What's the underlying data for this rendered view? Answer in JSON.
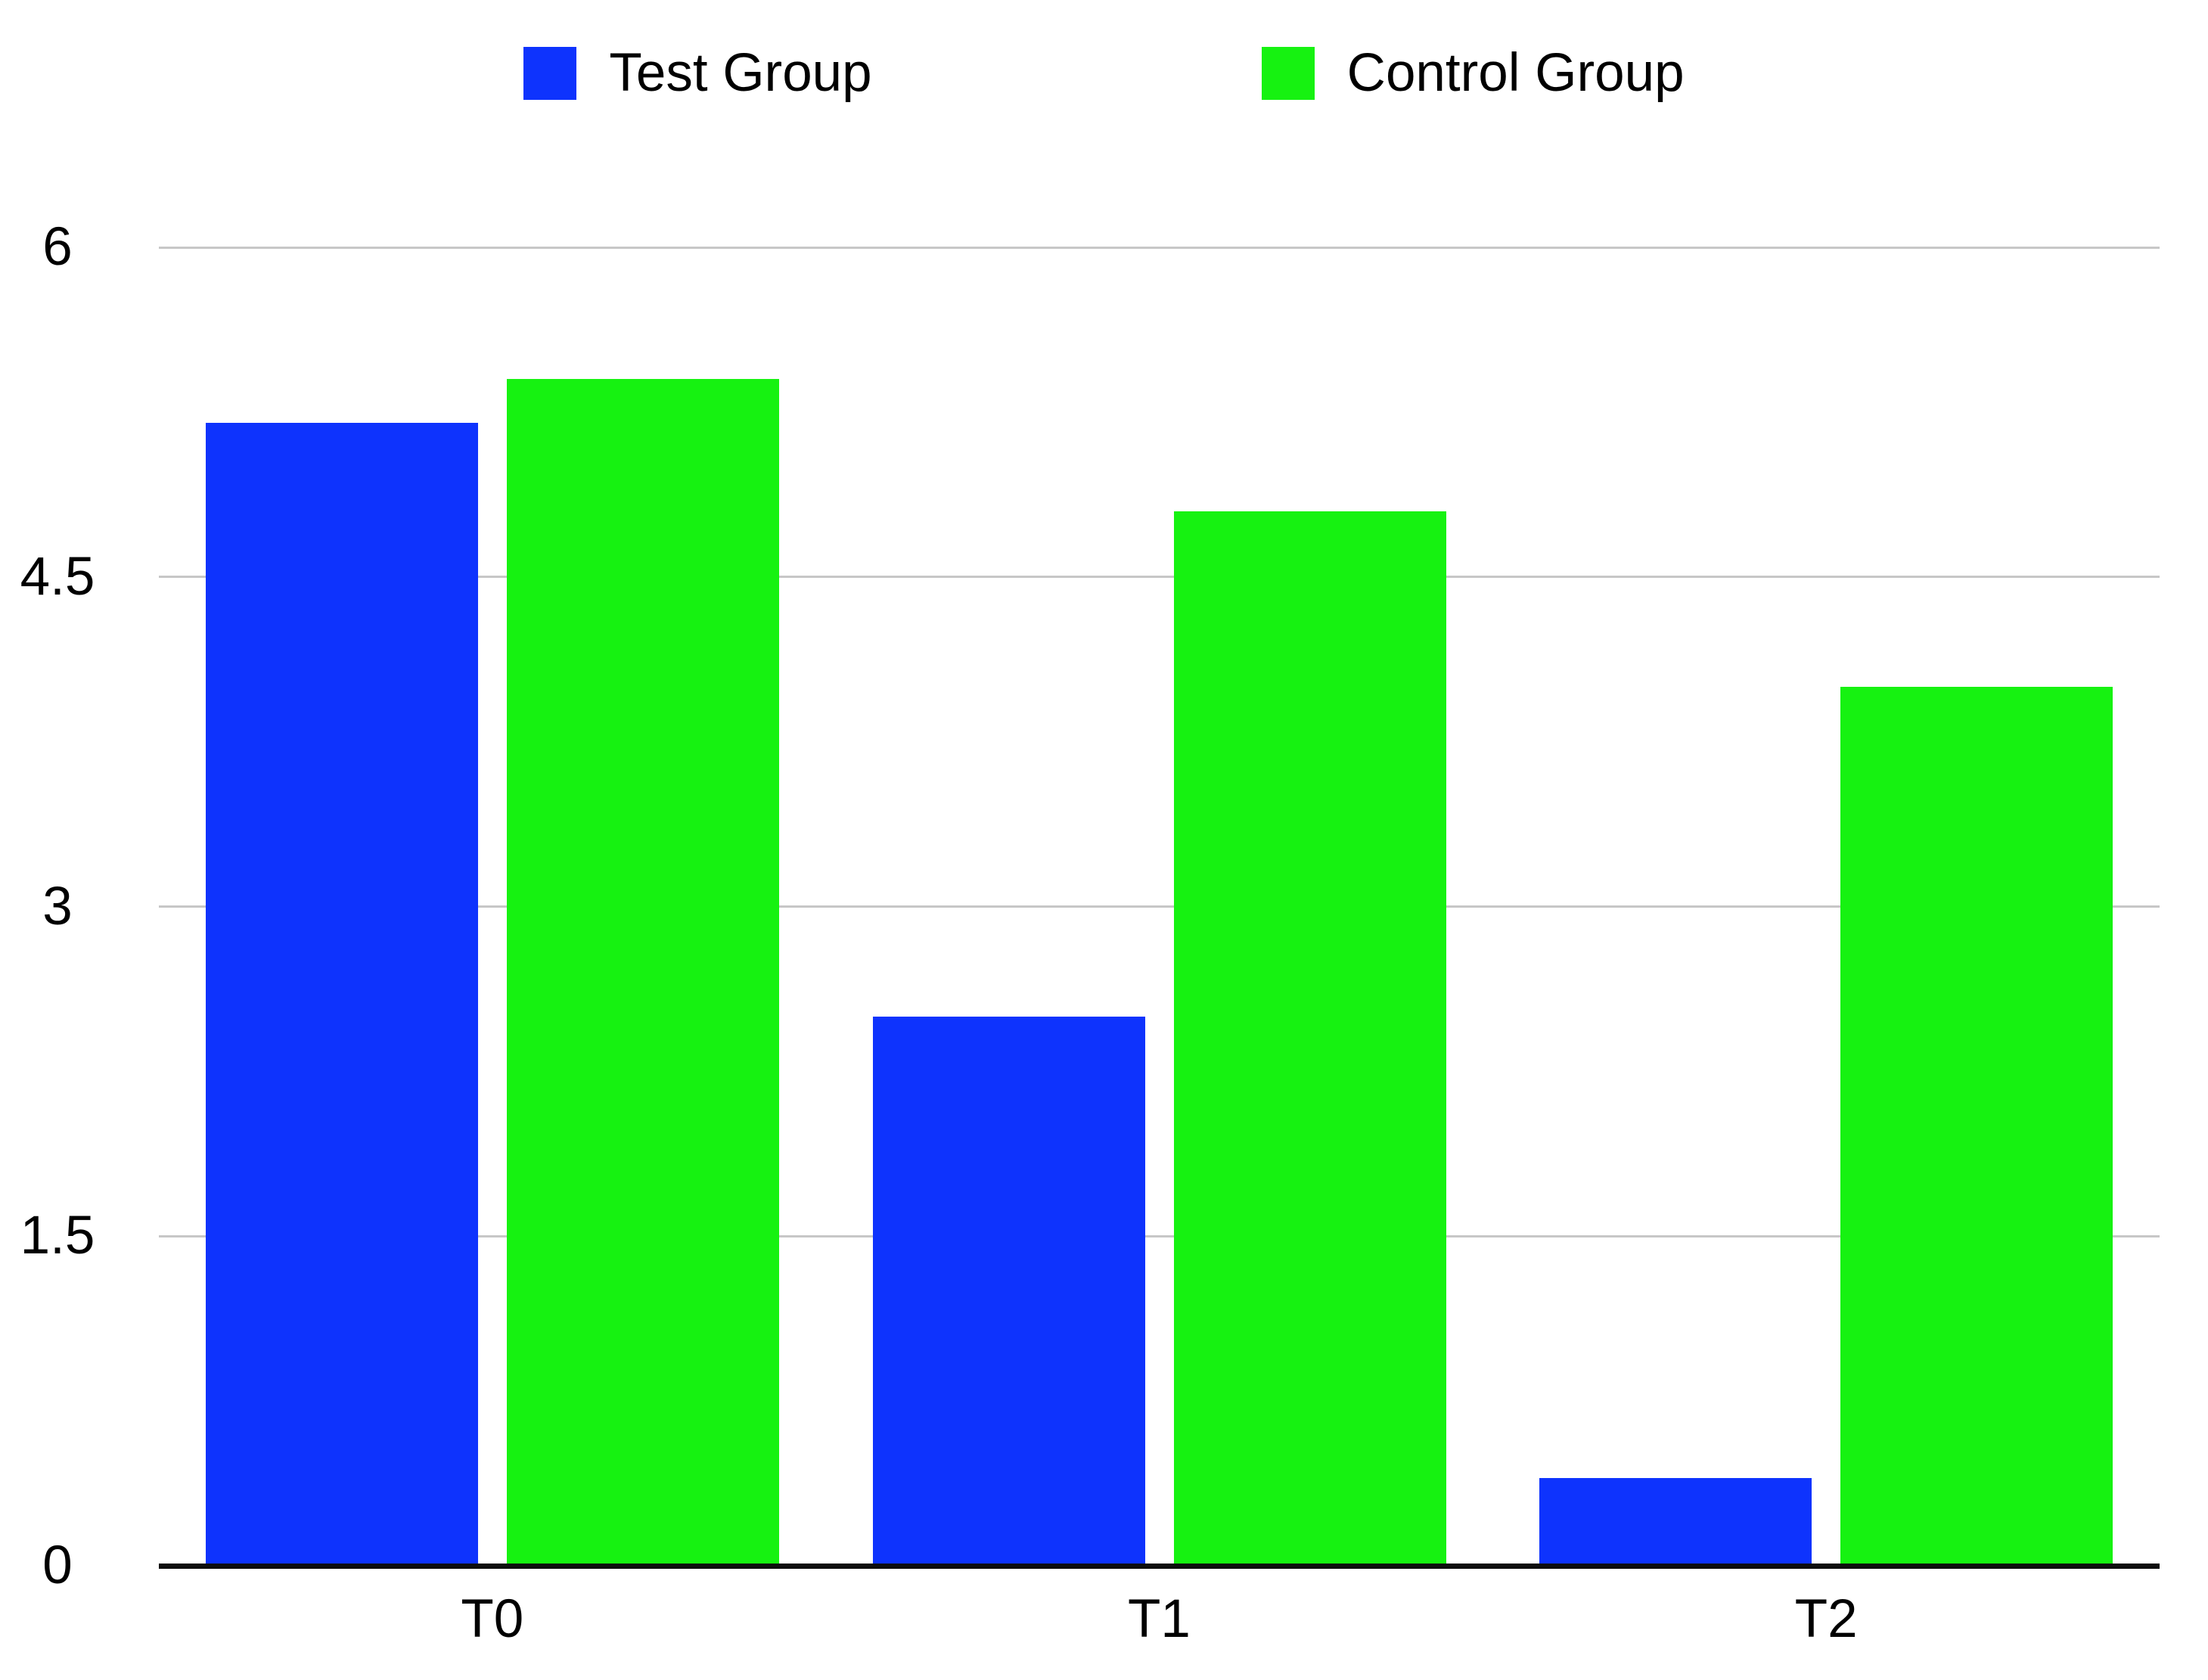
{
  "chart_data": {
    "type": "bar",
    "title": "",
    "xlabel": "",
    "ylabel": "",
    "categories": [
      "T0",
      "T1",
      "T2"
    ],
    "series": [
      {
        "name": "Test Group",
        "color": "#0e33fd",
        "values": [
          5.2,
          2.5,
          0.4
        ]
      },
      {
        "name": "Control Group",
        "color": "#16f211",
        "values": [
          5.4,
          4.8,
          4.0
        ]
      }
    ],
    "ylim": [
      0,
      6
    ],
    "yticks": [
      0,
      1.5,
      3,
      4.5,
      6
    ],
    "ytick_labels": [
      "0",
      "1.5",
      "3",
      "4.5",
      "6"
    ],
    "grid": true,
    "grid_color": "#c7c7c7",
    "axis_color": "#0d0d0d",
    "legend_position": "top"
  }
}
